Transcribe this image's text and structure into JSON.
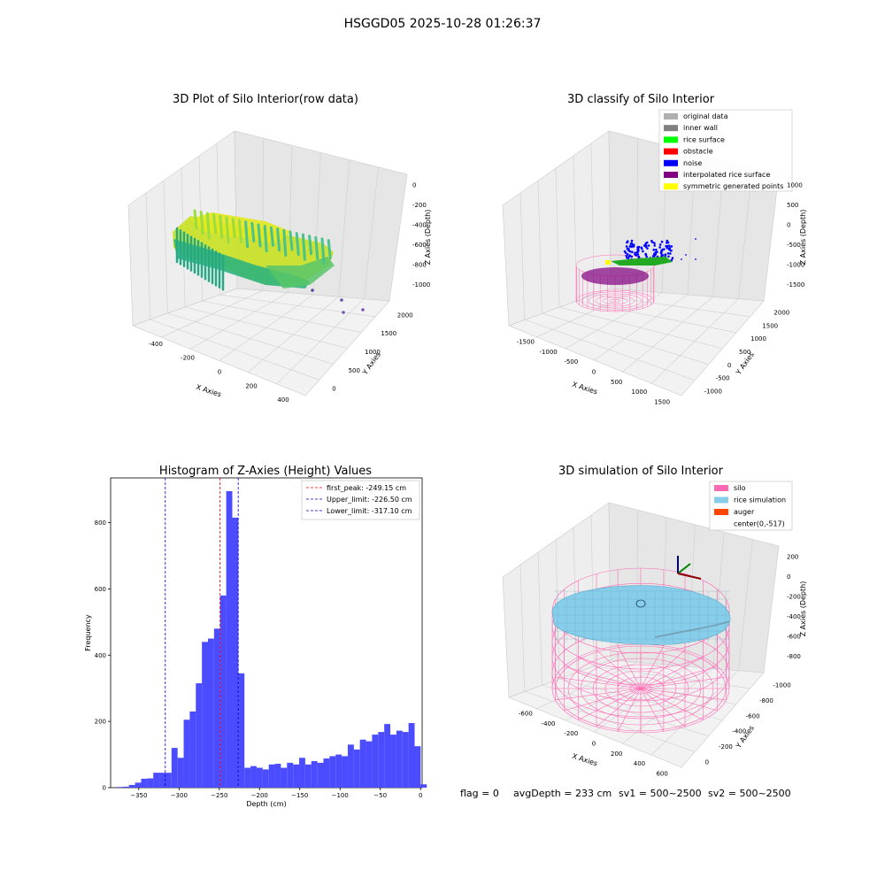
{
  "figure": {
    "suptitle": "HSGGD05 2025-10-28 01:26:37",
    "footer": {
      "flag": "flag = 0",
      "avg_depth": "avgDepth = 233 cm",
      "sv1": "sv1 = 500~2500",
      "sv2": "sv2 = 500~2500"
    }
  },
  "colors": {
    "histogram_bar": "#4b4bff",
    "first_peak": "#ff0000",
    "limit_lines": "#0000cc",
    "silo": "#ff69b4",
    "rice": "#87ceeb",
    "auger": "#ff4500"
  },
  "panels": {
    "raw": {
      "title": "3D Plot of Silo Interior(row data)",
      "xlabel": "X Axies",
      "ylabel": "Y Axies",
      "zlabel": "Z Axies (Depth)",
      "xticks": [
        "-400",
        "-200",
        "0",
        "200",
        "400"
      ],
      "yticks": [
        "0",
        "500",
        "1000",
        "1500",
        "2000"
      ],
      "zticks": [
        "0",
        "-200",
        "-400",
        "-600",
        "-800",
        "-1000"
      ]
    },
    "classify": {
      "title": "3D classify of Silo Interior",
      "xlabel": "X Axies",
      "ylabel": "Y Axies",
      "zlabel": "Z Axies (Depth)",
      "xticks": [
        "-1500",
        "-1000",
        "-500",
        "0",
        "500",
        "1000",
        "1500"
      ],
      "yticks": [
        "-1000",
        "-500",
        "0",
        "500",
        "1000",
        "1500",
        "2000"
      ],
      "zticks": [
        "1000",
        "500",
        "0",
        "-500",
        "-1000",
        "-1500"
      ],
      "legend": [
        {
          "label": "original data",
          "color": "#b0b0b0"
        },
        {
          "label": "inner wall",
          "color": "#808080"
        },
        {
          "label": "rice surface",
          "color": "#00ff00"
        },
        {
          "label": "obstacle",
          "color": "#ff0000"
        },
        {
          "label": "noise",
          "color": "#0000ff"
        },
        {
          "label": "interpolated rice surface",
          "color": "#800080"
        },
        {
          "label": "symmetric generated points",
          "color": "#ffff00"
        }
      ]
    },
    "simulation": {
      "title": "3D simulation of Silo Interior",
      "xlabel": "X Axies",
      "ylabel": "Y Axies",
      "zlabel": "Z Axies (Depth)",
      "xticks": [
        "-600",
        "-400",
        "-200",
        "0",
        "200",
        "400",
        "600"
      ],
      "yticks": [
        "0",
        "-200",
        "-400",
        "-600",
        "-800",
        "-1000"
      ],
      "zticks": [
        "200",
        "0",
        "-200",
        "-400",
        "-600",
        "-800"
      ],
      "legend": [
        {
          "label": "silo",
          "color": "#ff69b4"
        },
        {
          "label": "rice simulation",
          "color": "#87ceeb"
        },
        {
          "label": "auger",
          "color": "#ff4500"
        },
        {
          "label": "center(0,-517)",
          "color": ""
        }
      ]
    }
  },
  "chart_data": [
    {
      "type": "bar",
      "title": "Histogram of Z-Axies (Height) Values",
      "xlabel": "Depth (cm)",
      "ylabel": "Frequency",
      "xlim": [
        -385,
        2
      ],
      "ylim": [
        0,
        935
      ],
      "xticks": [
        -350,
        -300,
        -250,
        -200,
        -150,
        -100,
        -50,
        0
      ],
      "xtick_labels": [
        "−350",
        "−300",
        "−250",
        "−200",
        "−150",
        "−100",
        "−50",
        "0"
      ],
      "yticks": [
        0,
        200,
        400,
        600,
        800
      ],
      "ytick_labels": [
        "0",
        "200",
        "400",
        "600",
        "800"
      ],
      "bin_width": 7.55,
      "bins_start": -377.3,
      "values": [
        2,
        3,
        8,
        15,
        27,
        28,
        45,
        45,
        45,
        120,
        90,
        205,
        230,
        315,
        440,
        450,
        480,
        580,
        895,
        815,
        345,
        60,
        65,
        60,
        55,
        70,
        72,
        60,
        75,
        70,
        90,
        70,
        80,
        75,
        88,
        95,
        100,
        95,
        130,
        115,
        145,
        140,
        160,
        168,
        192,
        160,
        172,
        168,
        195,
        125,
        10
      ],
      "vlines": [
        {
          "x": -249.15,
          "label": "first_peak: -249.15 cm",
          "color": "#ff0000"
        },
        {
          "x": -226.5,
          "label": "Upper_limit: -226.50 cm",
          "color": "#0000cc"
        },
        {
          "x": -317.1,
          "label": "Lower_limit: -317.10 cm",
          "color": "#0000cc"
        }
      ],
      "legend_position": "upper right"
    }
  ]
}
